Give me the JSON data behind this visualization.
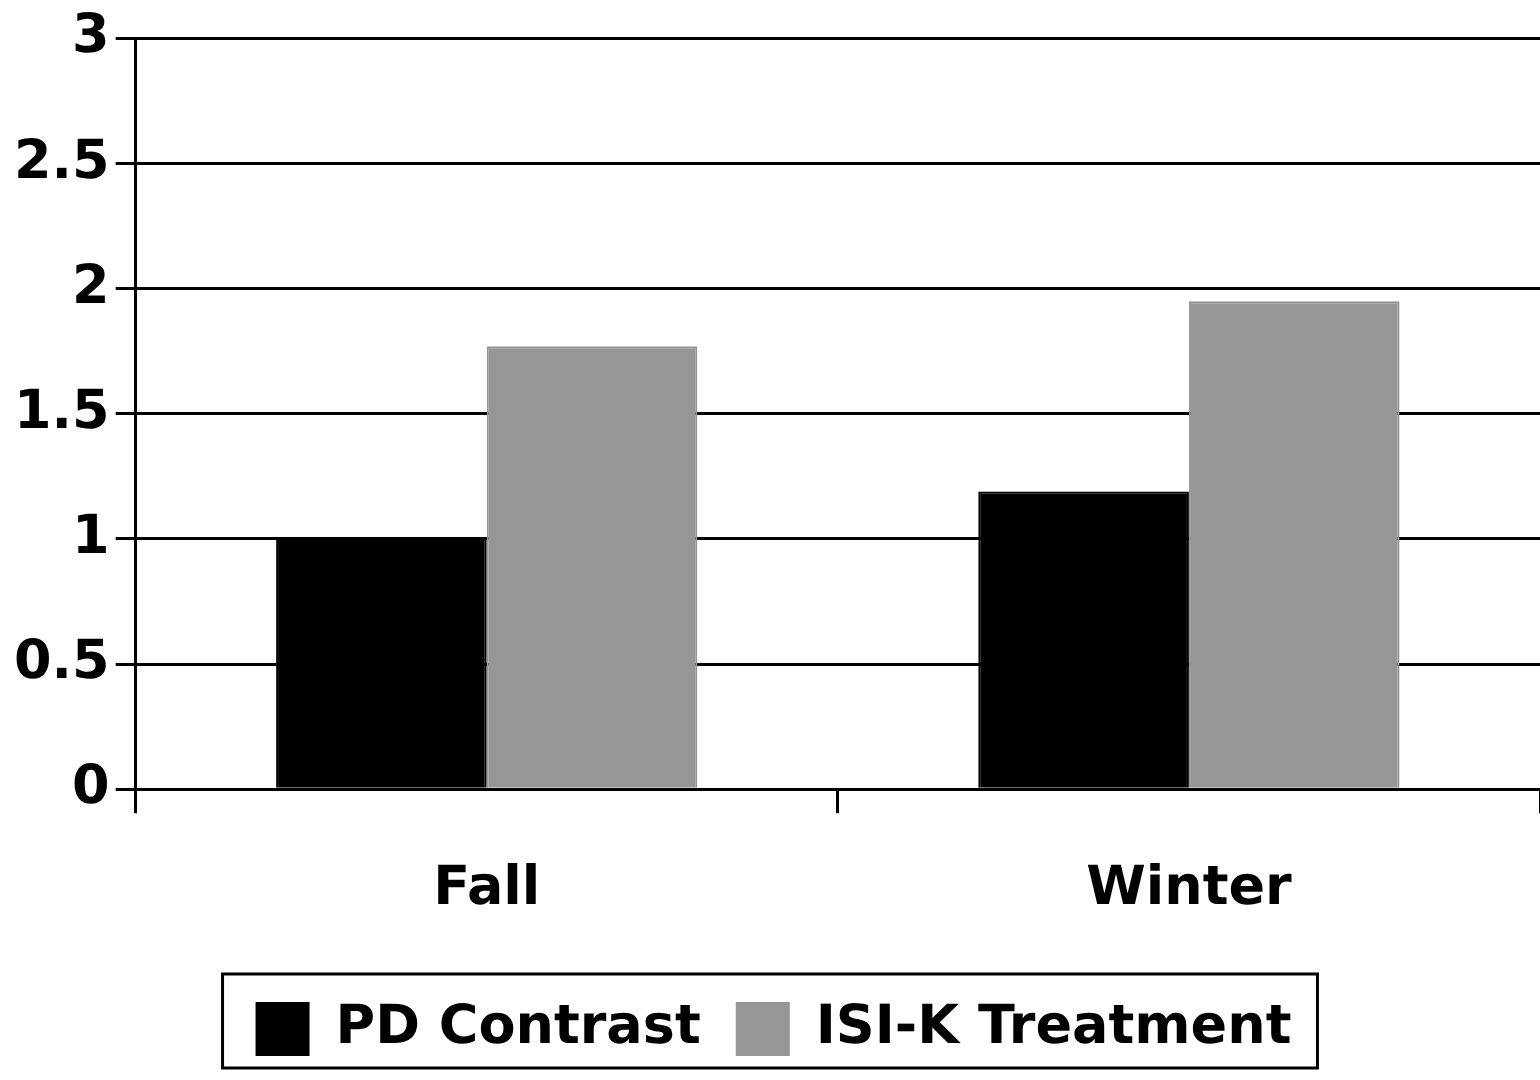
{
  "chart_data": {
    "type": "bar",
    "categories": [
      "Fall",
      "Winter"
    ],
    "series": [
      {
        "name": "PD Contrast",
        "color": "#000000",
        "values": [
          1.0,
          1.19
        ]
      },
      {
        "name": "ISI-K Treatment",
        "color": "#969696",
        "values": [
          1.77,
          1.95
        ]
      }
    ],
    "ylim": [
      0,
      3
    ],
    "yticks": [
      0,
      0.5,
      1,
      1.5,
      2,
      2.5,
      3
    ],
    "grid": "y",
    "legend": "bottom"
  }
}
